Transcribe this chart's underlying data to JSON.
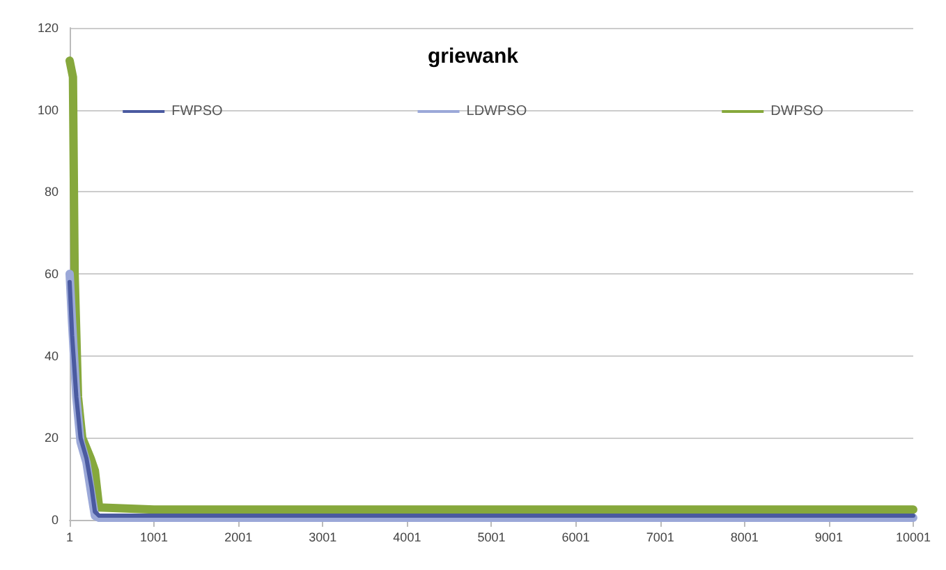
{
  "chart_data": {
    "type": "line",
    "title": "griewank",
    "xlim": [
      1,
      10001
    ],
    "xticks": [
      1,
      1001,
      2001,
      3001,
      4001,
      5001,
      6001,
      7001,
      8001,
      9001,
      10001
    ],
    "ylim": [
      0,
      120
    ],
    "yticks": [
      0,
      20,
      40,
      60,
      80,
      100,
      120
    ],
    "grid": "y",
    "legend": "top",
    "marker": "none",
    "line_style": "solid",
    "series": [
      {
        "name": "FWPSO",
        "color": "#4a5aa0",
        "x": [
          1,
          30,
          80,
          130,
          200,
          260,
          300,
          350,
          1000,
          5000,
          10001
        ],
        "values": [
          58,
          45,
          30,
          20,
          15,
          8,
          2,
          1,
          1,
          1,
          1
        ]
      },
      {
        "name": "LDWPSO",
        "color": "#9ba8d8",
        "x": [
          1,
          30,
          80,
          130,
          200,
          260,
          300,
          350,
          1000,
          5000,
          10001
        ],
        "values": [
          60,
          48,
          30,
          19,
          14,
          6,
          1,
          0.5,
          0.5,
          0.5,
          0.5
        ]
      },
      {
        "name": "DWPSO",
        "color": "#86a83c",
        "x": [
          1,
          40,
          60,
          100,
          150,
          250,
          300,
          350,
          1000,
          5000,
          6800,
          10001
        ],
        "values": [
          112,
          108,
          60,
          30,
          20,
          15,
          12,
          3,
          2.5,
          2.5,
          2.5,
          2.5
        ]
      }
    ]
  }
}
